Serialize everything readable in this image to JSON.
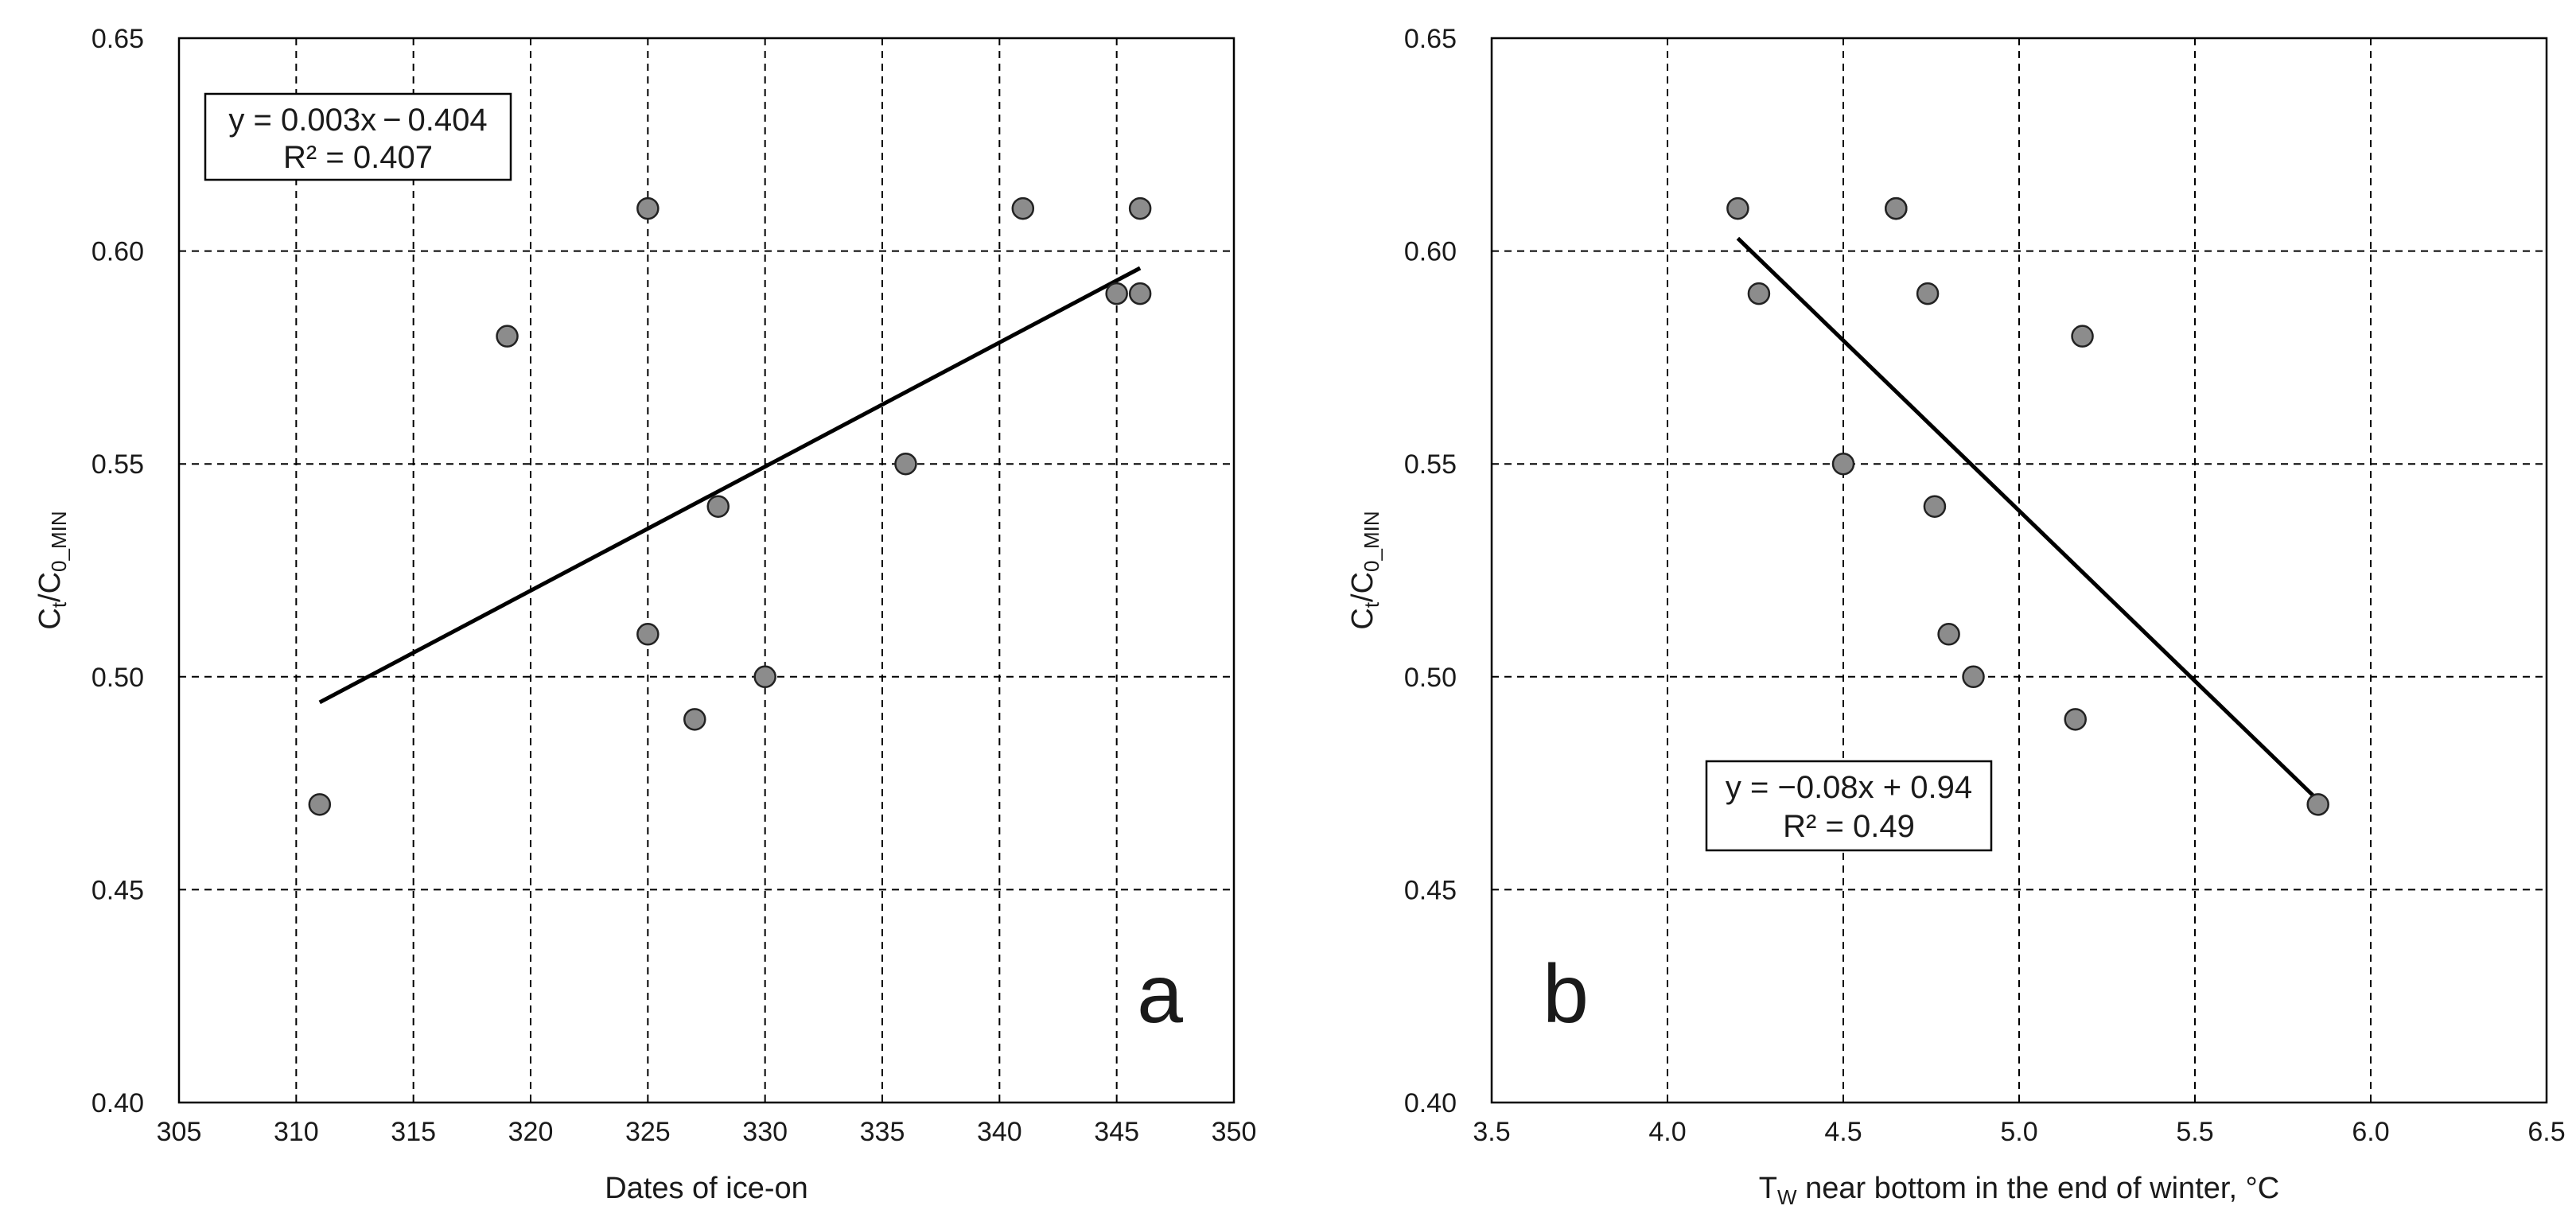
{
  "chart_data": [
    {
      "type": "scatter",
      "panel_label": "a",
      "xlabel": "Dates of ice-on",
      "ylabel": {
        "main": "C",
        "sub1": "t",
        "mid": "/C",
        "sub2": "0_MIN"
      },
      "xlim": [
        305,
        350
      ],
      "ylim": [
        0.4,
        0.65
      ],
      "x_ticks": [
        "305",
        "310",
        "315",
        "320",
        "325",
        "330",
        "335",
        "340",
        "345",
        "350"
      ],
      "y_ticks": [
        "0.40",
        "0.45",
        "0.50",
        "0.55",
        "0.60",
        "0.65"
      ],
      "grid": true,
      "points": [
        {
          "x": 311,
          "y": 0.47
        },
        {
          "x": 319,
          "y": 0.58
        },
        {
          "x": 325,
          "y": 0.61
        },
        {
          "x": 325,
          "y": 0.51
        },
        {
          "x": 327,
          "y": 0.49
        },
        {
          "x": 328,
          "y": 0.54
        },
        {
          "x": 330,
          "y": 0.5
        },
        {
          "x": 336,
          "y": 0.55
        },
        {
          "x": 341,
          "y": 0.61
        },
        {
          "x": 345,
          "y": 0.59
        },
        {
          "x": 346,
          "y": 0.61
        },
        {
          "x": 346,
          "y": 0.59
        }
      ],
      "trendline": {
        "x": [
          311,
          346
        ],
        "y": [
          0.494,
          0.596
        ]
      },
      "equation": "y = 0.003x − 0.404",
      "r2": "R² = 0.407",
      "equation_position": "top-left",
      "marker_color": "#8c8c8c"
    },
    {
      "type": "scatter",
      "panel_label": "b",
      "xlabel": {
        "main": "T",
        "sub": "W",
        "rest": " near bottom in the end of winter, °C"
      },
      "ylabel": {
        "main": "C",
        "sub1": "t",
        "mid": "/C",
        "sub2": "0_MIN"
      },
      "xlim": [
        3.5,
        6.5
      ],
      "ylim": [
        0.4,
        0.65
      ],
      "x_ticks": [
        "3.5",
        "4.0",
        "4.5",
        "5.0",
        "5.5",
        "6.0",
        "6.5"
      ],
      "y_ticks": [
        "0.40",
        "0.45",
        "0.50",
        "0.55",
        "0.60",
        "0.65"
      ],
      "grid": true,
      "points": [
        {
          "x": 4.2,
          "y": 0.61
        },
        {
          "x": 4.26,
          "y": 0.59
        },
        {
          "x": 4.5,
          "y": 0.55
        },
        {
          "x": 4.65,
          "y": 0.61
        },
        {
          "x": 4.65,
          "y": 0.61
        },
        {
          "x": 4.74,
          "y": 0.59
        },
        {
          "x": 4.76,
          "y": 0.54
        },
        {
          "x": 4.8,
          "y": 0.51
        },
        {
          "x": 4.87,
          "y": 0.5
        },
        {
          "x": 5.16,
          "y": 0.49
        },
        {
          "x": 5.18,
          "y": 0.58
        },
        {
          "x": 5.85,
          "y": 0.47
        }
      ],
      "trendline": {
        "x": [
          4.2,
          5.85
        ],
        "y": [
          0.603,
          0.471
        ]
      },
      "equation": "y = −0.08x + 0.94",
      "r2": "R² = 0.49",
      "equation_position": "bottom-center",
      "marker_color": "#8c8c8c"
    }
  ]
}
